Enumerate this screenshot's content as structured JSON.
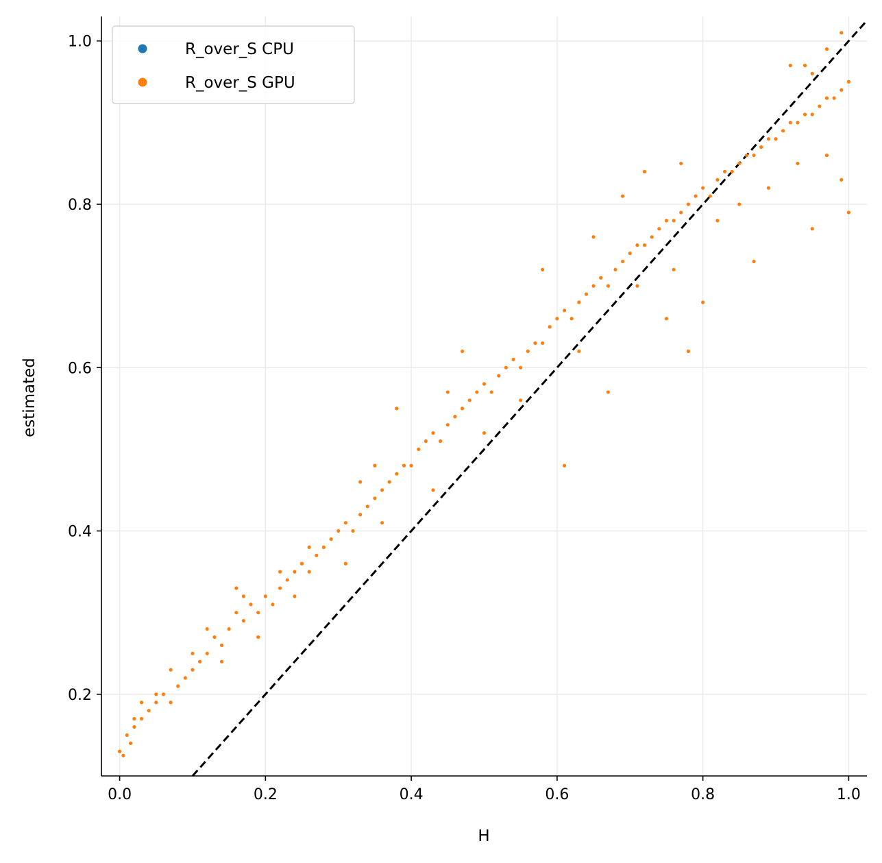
{
  "chart_data": {
    "type": "scatter",
    "title": "",
    "xlabel": "H",
    "ylabel": "estimated",
    "xlim": [
      -0.025,
      1.025
    ],
    "ylim": [
      0.1,
      1.03
    ],
    "xticks": [
      0.0,
      0.2,
      0.4,
      0.6,
      0.8,
      1.0
    ],
    "xtick_labels": [
      "0.0",
      "0.2",
      "0.4",
      "0.6",
      "0.8",
      "1.0"
    ],
    "yticks": [
      0.2,
      0.4,
      0.6,
      0.8,
      1.0
    ],
    "ytick_labels": [
      "0.2",
      "0.4",
      "0.6",
      "0.8",
      "1.0"
    ],
    "grid": true,
    "legend_position": "top-left",
    "reference_line": {
      "style": "dashed",
      "color": "#000000",
      "slope": 1,
      "intercept": 0
    },
    "series": [
      {
        "name": "R_over_S CPU",
        "color": "#1f77b4",
        "points": []
      },
      {
        "name": "R_over_S GPU",
        "color": "#ff7f0e",
        "points": [
          [
            0.0,
            0.13
          ],
          [
            0.005,
            0.125
          ],
          [
            0.01,
            0.15
          ],
          [
            0.015,
            0.14
          ],
          [
            0.02,
            0.16
          ],
          [
            0.03,
            0.17
          ],
          [
            0.04,
            0.18
          ],
          [
            0.05,
            0.19
          ],
          [
            0.06,
            0.2
          ],
          [
            0.07,
            0.19
          ],
          [
            0.08,
            0.21
          ],
          [
            0.09,
            0.22
          ],
          [
            0.1,
            0.23
          ],
          [
            0.11,
            0.24
          ],
          [
            0.12,
            0.25
          ],
          [
            0.13,
            0.27
          ],
          [
            0.14,
            0.26
          ],
          [
            0.15,
            0.28
          ],
          [
            0.16,
            0.3
          ],
          [
            0.17,
            0.29
          ],
          [
            0.18,
            0.31
          ],
          [
            0.19,
            0.3
          ],
          [
            0.2,
            0.32
          ],
          [
            0.21,
            0.31
          ],
          [
            0.22,
            0.33
          ],
          [
            0.23,
            0.34
          ],
          [
            0.24,
            0.35
          ],
          [
            0.25,
            0.36
          ],
          [
            0.26,
            0.35
          ],
          [
            0.27,
            0.37
          ],
          [
            0.28,
            0.38
          ],
          [
            0.29,
            0.39
          ],
          [
            0.3,
            0.4
          ],
          [
            0.31,
            0.41
          ],
          [
            0.32,
            0.4
          ],
          [
            0.33,
            0.42
          ],
          [
            0.34,
            0.43
          ],
          [
            0.35,
            0.44
          ],
          [
            0.36,
            0.45
          ],
          [
            0.37,
            0.46
          ],
          [
            0.38,
            0.47
          ],
          [
            0.39,
            0.48
          ],
          [
            0.4,
            0.48
          ],
          [
            0.41,
            0.5
          ],
          [
            0.42,
            0.51
          ],
          [
            0.43,
            0.52
          ],
          [
            0.44,
            0.51
          ],
          [
            0.45,
            0.53
          ],
          [
            0.46,
            0.54
          ],
          [
            0.47,
            0.55
          ],
          [
            0.48,
            0.56
          ],
          [
            0.49,
            0.57
          ],
          [
            0.5,
            0.58
          ],
          [
            0.51,
            0.57
          ],
          [
            0.52,
            0.59
          ],
          [
            0.53,
            0.6
          ],
          [
            0.54,
            0.61
          ],
          [
            0.55,
            0.6
          ],
          [
            0.56,
            0.62
          ],
          [
            0.57,
            0.63
          ],
          [
            0.58,
            0.63
          ],
          [
            0.59,
            0.65
          ],
          [
            0.6,
            0.66
          ],
          [
            0.61,
            0.67
          ],
          [
            0.62,
            0.66
          ],
          [
            0.63,
            0.68
          ],
          [
            0.64,
            0.69
          ],
          [
            0.65,
            0.7
          ],
          [
            0.66,
            0.71
          ],
          [
            0.67,
            0.7
          ],
          [
            0.68,
            0.72
          ],
          [
            0.69,
            0.73
          ],
          [
            0.7,
            0.74
          ],
          [
            0.71,
            0.75
          ],
          [
            0.72,
            0.75
          ],
          [
            0.73,
            0.76
          ],
          [
            0.74,
            0.77
          ],
          [
            0.75,
            0.78
          ],
          [
            0.76,
            0.78
          ],
          [
            0.77,
            0.79
          ],
          [
            0.78,
            0.8
          ],
          [
            0.79,
            0.81
          ],
          [
            0.8,
            0.82
          ],
          [
            0.81,
            0.81
          ],
          [
            0.82,
            0.83
          ],
          [
            0.83,
            0.84
          ],
          [
            0.84,
            0.84
          ],
          [
            0.85,
            0.85
          ],
          [
            0.86,
            0.86
          ],
          [
            0.87,
            0.86
          ],
          [
            0.88,
            0.87
          ],
          [
            0.89,
            0.88
          ],
          [
            0.9,
            0.88
          ],
          [
            0.91,
            0.89
          ],
          [
            0.92,
            0.9
          ],
          [
            0.93,
            0.9
          ],
          [
            0.94,
            0.91
          ],
          [
            0.95,
            0.91
          ],
          [
            0.96,
            0.92
          ],
          [
            0.97,
            0.93
          ],
          [
            0.98,
            0.93
          ],
          [
            0.99,
            0.94
          ],
          [
            1.0,
            0.95
          ],
          [
            0.38,
            0.55
          ],
          [
            0.47,
            0.62
          ],
          [
            0.61,
            0.48
          ],
          [
            0.78,
            0.62
          ],
          [
            0.8,
            0.68
          ],
          [
            0.67,
            0.57
          ],
          [
            0.75,
            0.66
          ],
          [
            0.87,
            0.73
          ],
          [
            0.95,
            0.77
          ],
          [
            1.0,
            0.79
          ],
          [
            0.94,
            0.97
          ],
          [
            0.97,
            0.99
          ],
          [
            0.99,
            1.01
          ],
          [
            0.92,
            0.97
          ],
          [
            0.95,
            0.96
          ],
          [
            0.99,
            0.83
          ],
          [
            0.65,
            0.76
          ],
          [
            0.69,
            0.81
          ],
          [
            0.72,
            0.84
          ],
          [
            0.77,
            0.85
          ],
          [
            0.58,
            0.72
          ],
          [
            0.45,
            0.57
          ],
          [
            0.35,
            0.48
          ],
          [
            0.33,
            0.46
          ],
          [
            0.26,
            0.38
          ],
          [
            0.22,
            0.35
          ],
          [
            0.17,
            0.32
          ],
          [
            0.16,
            0.33
          ],
          [
            0.12,
            0.28
          ],
          [
            0.1,
            0.25
          ],
          [
            0.07,
            0.23
          ],
          [
            0.05,
            0.2
          ],
          [
            0.03,
            0.19
          ],
          [
            0.02,
            0.17
          ],
          [
            0.14,
            0.24
          ],
          [
            0.19,
            0.27
          ],
          [
            0.24,
            0.32
          ],
          [
            0.31,
            0.36
          ],
          [
            0.36,
            0.41
          ],
          [
            0.43,
            0.45
          ],
          [
            0.5,
            0.52
          ],
          [
            0.55,
            0.56
          ],
          [
            0.63,
            0.62
          ],
          [
            0.71,
            0.7
          ],
          [
            0.76,
            0.72
          ],
          [
            0.82,
            0.78
          ],
          [
            0.85,
            0.8
          ],
          [
            0.89,
            0.82
          ],
          [
            0.93,
            0.85
          ],
          [
            0.97,
            0.86
          ]
        ]
      }
    ]
  }
}
